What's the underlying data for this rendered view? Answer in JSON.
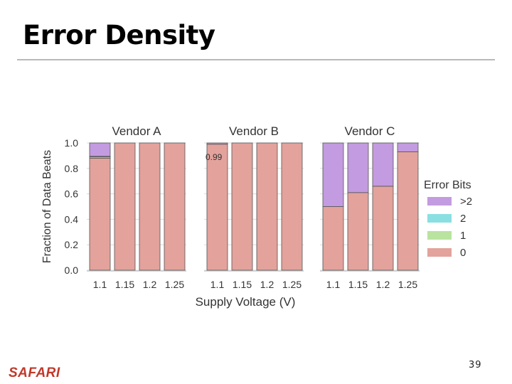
{
  "slide": {
    "title": "Error Density",
    "logo_text": "SAFARI",
    "page_number": "39"
  },
  "colors": {
    "bit0": "#e3a29c",
    "bit1": "#b9e3a0",
    "bit2": "#8adfe2",
    "bit_gt2": "#c39be0",
    "grid": "#dcdcdc",
    "rule": "#b9b9b9",
    "logo": "#c0392b"
  },
  "chart_data": {
    "type": "bar",
    "stacked": true,
    "xlabel": "Supply Voltage (V)",
    "ylabel": "Fraction of Data Beats",
    "ylim": [
      0,
      1.0
    ],
    "yticks": [
      "0.0",
      "0.2",
      "0.4",
      "0.6",
      "0.8",
      "1.0"
    ],
    "categories": [
      "1.1",
      "1.15",
      "1.2",
      "1.25"
    ],
    "legend": {
      "title": "Error Bits",
      "position": "right",
      "entries": [
        {
          "label": ">2",
          "key": "bit_gt2"
        },
        {
          "label": "2",
          "key": "bit2"
        },
        {
          "label": "1",
          "key": "bit1"
        },
        {
          "label": "0",
          "key": "bit0"
        }
      ]
    },
    "panels": [
      {
        "name": "Vendor A",
        "annotation": "",
        "series": [
          {
            "key": "bit0",
            "values": [
              0.88,
              1.0,
              1.0,
              1.0
            ]
          },
          {
            "key": "bit1",
            "values": [
              0.01,
              0,
              0,
              0
            ]
          },
          {
            "key": "bit2",
            "values": [
              0.005,
              0,
              0,
              0
            ]
          },
          {
            "key": "bit_gt2",
            "values": [
              0.105,
              0,
              0,
              0
            ]
          }
        ]
      },
      {
        "name": "Vendor B",
        "annotation": "0.99",
        "series": [
          {
            "key": "bit0",
            "values": [
              0.99,
              1.0,
              1.0,
              1.0
            ]
          },
          {
            "key": "bit1",
            "values": [
              0.0,
              0,
              0,
              0
            ]
          },
          {
            "key": "bit2",
            "values": [
              0.0,
              0,
              0,
              0
            ]
          },
          {
            "key": "bit_gt2",
            "values": [
              0.01,
              0,
              0,
              0
            ]
          }
        ]
      },
      {
        "name": "Vendor C",
        "annotation": "",
        "series": [
          {
            "key": "bit0",
            "values": [
              0.5,
              0.61,
              0.66,
              0.93
            ]
          },
          {
            "key": "bit1",
            "values": [
              0,
              0,
              0,
              0
            ]
          },
          {
            "key": "bit2",
            "values": [
              0,
              0,
              0,
              0
            ]
          },
          {
            "key": "bit_gt2",
            "values": [
              0.5,
              0.39,
              0.34,
              0.07
            ]
          }
        ]
      }
    ]
  }
}
